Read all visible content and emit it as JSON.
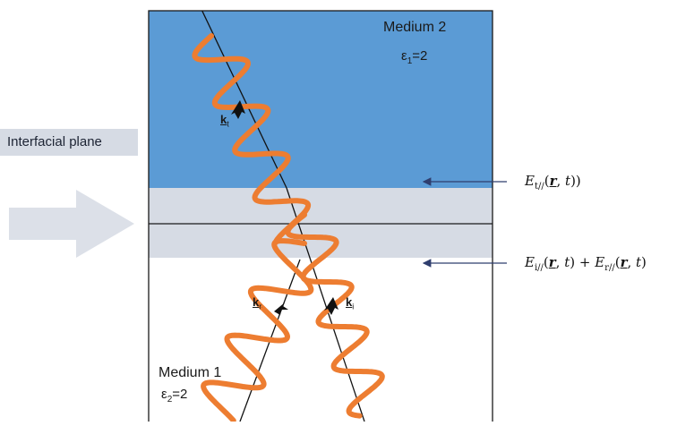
{
  "interfacial_label": "Interfacial plane",
  "medium2": {
    "name": "Medium 2",
    "eps_symbol": "ε",
    "eps_sub": "1",
    "eps_value": "=2"
  },
  "medium1": {
    "name": "Medium 1",
    "eps_symbol": "ε",
    "eps_sub": "2",
    "eps_value": "=2"
  },
  "vectors": {
    "transmitted": {
      "symbol": "k",
      "sub": "t"
    },
    "reflected": {
      "symbol": "k",
      "sub": "r"
    },
    "incident": {
      "symbol": "k",
      "sub": "i"
    }
  },
  "equations": {
    "upper": {
      "E": "E",
      "sub": "t//",
      "r": "r",
      "t": "t",
      "tail": "))"
    },
    "lower_a": {
      "E": "E",
      "sub": "i//",
      "r": "r",
      "t": "t"
    },
    "plus": "+",
    "lower_b": {
      "E": "E",
      "sub": "r//",
      "r": "r",
      "t": "t"
    }
  },
  "colors": {
    "medium2_fill": "#5b9bd5",
    "interface_band": "#d6dbe4",
    "arrow_fill": "#d6dbe4",
    "wave": "#ed7d31",
    "pointer_arrow": "#2f3e6e"
  }
}
